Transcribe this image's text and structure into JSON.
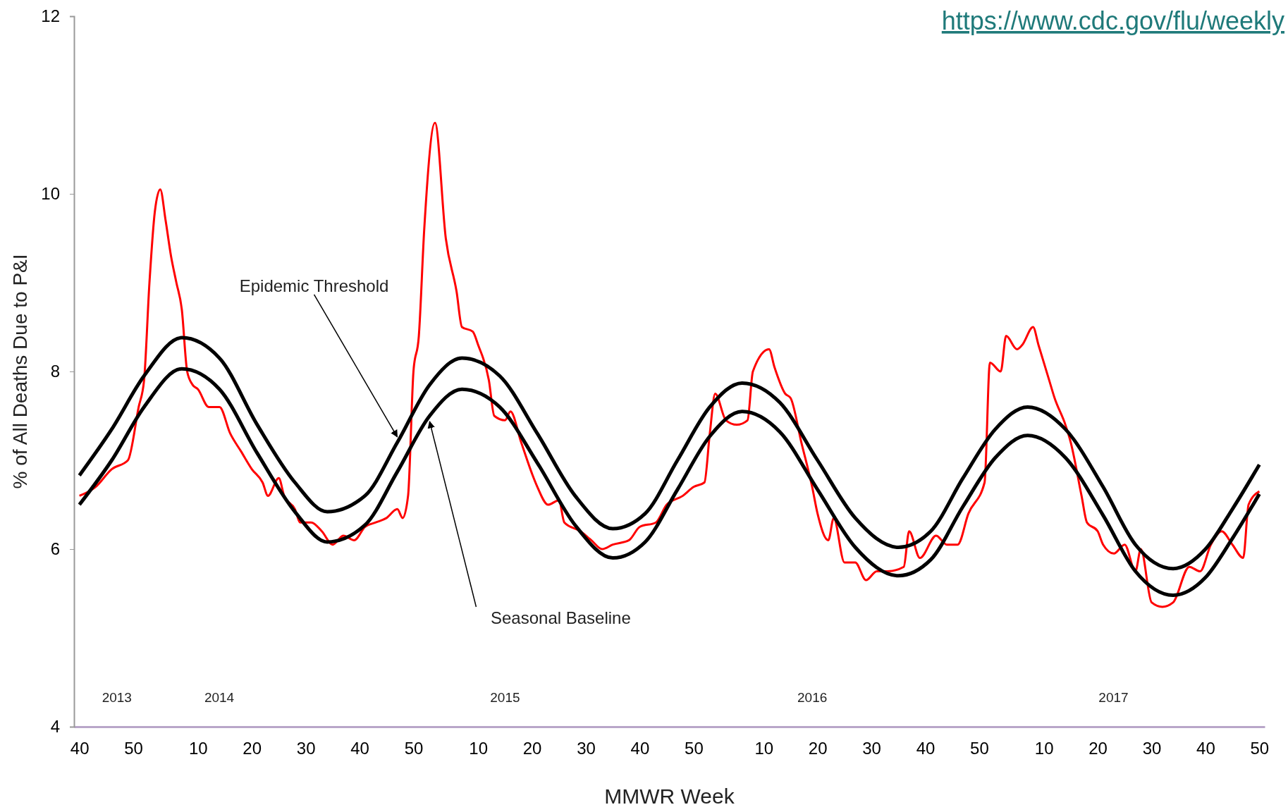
{
  "chart_data": {
    "type": "line",
    "xlabel": "MMWR Week",
    "ylabel": "% of All Deaths Due to P&I",
    "xlim": [
      "2013-09-28",
      "2017-12-23"
    ],
    "ylim": [
      4,
      12
    ],
    "yticks": [
      4,
      6,
      8,
      10,
      12
    ],
    "xticks": [
      {
        "value": "2013-10-05",
        "label": "40"
      },
      {
        "value": "2013-12-14",
        "label": "50"
      },
      {
        "value": "2014-03-08",
        "label": "10"
      },
      {
        "value": "2014-05-17",
        "label": "20"
      },
      {
        "value": "2014-07-26",
        "label": "30"
      },
      {
        "value": "2014-10-04",
        "label": "40"
      },
      {
        "value": "2014-12-13",
        "label": "50"
      },
      {
        "value": "2015-03-07",
        "label": "10"
      },
      {
        "value": "2015-05-16",
        "label": "20"
      },
      {
        "value": "2015-07-25",
        "label": "30"
      },
      {
        "value": "2015-10-03",
        "label": "40"
      },
      {
        "value": "2015-12-12",
        "label": "50"
      },
      {
        "value": "2016-03-12",
        "label": "10"
      },
      {
        "value": "2016-05-21",
        "label": "20"
      },
      {
        "value": "2016-07-30",
        "label": "30"
      },
      {
        "value": "2016-10-08",
        "label": "40"
      },
      {
        "value": "2016-12-17",
        "label": "50"
      },
      {
        "value": "2017-03-11",
        "label": "10"
      },
      {
        "value": "2017-05-20",
        "label": "20"
      },
      {
        "value": "2017-07-29",
        "label": "30"
      },
      {
        "value": "2017-10-07",
        "label": "40"
      },
      {
        "value": "2017-12-16",
        "label": "50"
      }
    ],
    "series": [
      {
        "color": "#ff0000",
        "x": [
          "2013-10-05",
          "2013-10-26",
          "2013-11-16",
          "2013-12-07",
          "2013-12-21",
          "2013-12-28",
          "2014-01-04",
          "2014-01-11",
          "2014-01-18",
          "2014-01-25",
          "2014-02-01",
          "2014-02-08",
          "2014-02-15",
          "2014-02-22",
          "2014-03-01",
          "2014-03-08",
          "2014-03-22",
          "2014-04-05",
          "2014-04-19",
          "2014-05-03",
          "2014-05-17",
          "2014-05-31",
          "2014-06-07",
          "2014-06-21",
          "2014-06-28",
          "2014-07-12",
          "2014-07-19",
          "2014-08-02",
          "2014-08-16",
          "2014-08-30",
          "2014-09-13",
          "2014-09-27",
          "2014-10-11",
          "2014-10-25",
          "2014-11-08",
          "2014-11-22",
          "2014-11-29",
          "2014-12-06",
          "2014-12-13",
          "2014-12-20",
          "2014-12-27",
          "2015-01-10",
          "2015-01-24",
          "2015-02-07",
          "2015-02-14",
          "2015-02-28",
          "2015-03-07",
          "2015-03-21",
          "2015-03-28",
          "2015-04-11",
          "2015-04-18",
          "2015-05-02",
          "2015-05-16",
          "2015-05-23",
          "2015-06-06",
          "2015-06-20",
          "2015-06-27",
          "2015-07-18",
          "2015-08-01",
          "2015-08-15",
          "2015-08-29",
          "2015-09-19",
          "2015-10-03",
          "2015-10-24",
          "2015-11-07",
          "2015-11-28",
          "2015-12-12",
          "2015-12-26",
          "2016-01-02",
          "2016-01-09",
          "2016-01-23",
          "2016-02-06",
          "2016-02-20",
          "2016-02-27",
          "2016-03-19",
          "2016-03-26",
          "2016-04-09",
          "2016-04-16",
          "2016-04-30",
          "2016-05-14",
          "2016-05-21",
          "2016-06-04",
          "2016-06-11",
          "2016-06-25",
          "2016-07-09",
          "2016-07-23",
          "2016-08-06",
          "2016-08-20",
          "2016-09-10",
          "2016-09-17",
          "2016-10-01",
          "2016-10-22",
          "2016-11-05",
          "2016-11-19",
          "2016-12-03",
          "2016-12-24",
          "2016-12-31",
          "2017-01-14",
          "2017-01-21",
          "2017-02-04",
          "2017-02-11",
          "2017-02-25",
          "2017-03-04",
          "2017-03-18",
          "2017-03-25",
          "2017-04-08",
          "2017-04-15",
          "2017-04-29",
          "2017-05-06",
          "2017-05-20",
          "2017-05-27",
          "2017-06-10",
          "2017-06-24",
          "2017-07-08",
          "2017-07-15",
          "2017-07-29",
          "2017-08-12",
          "2017-08-26",
          "2017-09-16",
          "2017-09-30",
          "2017-10-14",
          "2017-10-28",
          "2017-11-11",
          "2017-11-25",
          "2017-12-02",
          "2017-12-16"
        ],
        "values": [
          6.6,
          6.7,
          6.9,
          7.0,
          7.6,
          7.9,
          9.0,
          9.8,
          10.05,
          9.7,
          9.3,
          9.0,
          8.7,
          8.0,
          7.85,
          7.8,
          7.6,
          7.6,
          7.3,
          7.1,
          6.9,
          6.75,
          6.6,
          6.8,
          6.6,
          6.45,
          6.3,
          6.3,
          6.2,
          6.05,
          6.15,
          6.1,
          6.25,
          6.3,
          6.35,
          6.45,
          6.35,
          6.6,
          8.0,
          8.4,
          9.6,
          10.8,
          9.5,
          8.9,
          8.5,
          8.45,
          8.3,
          7.9,
          7.5,
          7.45,
          7.55,
          7.2,
          6.85,
          6.7,
          6.5,
          6.55,
          6.3,
          6.2,
          6.1,
          6.0,
          6.05,
          6.1,
          6.25,
          6.3,
          6.5,
          6.6,
          6.7,
          6.75,
          7.3,
          7.75,
          7.45,
          7.4,
          7.45,
          8.0,
          8.25,
          8.05,
          7.75,
          7.7,
          7.2,
          6.7,
          6.4,
          6.1,
          6.35,
          5.85,
          5.85,
          5.65,
          5.75,
          5.75,
          5.8,
          6.2,
          5.9,
          6.15,
          6.05,
          6.05,
          6.4,
          6.75,
          8.1,
          8.0,
          8.4,
          8.25,
          8.3,
          8.5,
          8.3,
          7.9,
          7.7,
          7.4,
          7.2,
          6.6,
          6.3,
          6.2,
          6.05,
          5.95,
          6.05,
          5.75,
          6.0,
          5.4,
          5.35,
          5.4,
          5.8,
          5.75,
          6.05,
          6.2,
          6.05,
          5.9,
          6.5,
          6.65
        ]
      },
      {
        "name": "Epidemic Threshold",
        "color": "#000000",
        "x": [
          "2013-10-05",
          "2013-11-16",
          "2013-12-28",
          "2014-02-15",
          "2014-04-05",
          "2014-05-24",
          "2014-07-12",
          "2014-08-23",
          "2014-10-11",
          "2014-11-22",
          "2015-01-03",
          "2015-02-14",
          "2015-04-04",
          "2015-05-23",
          "2015-07-11",
          "2015-08-29",
          "2015-10-10",
          "2015-11-21",
          "2016-01-02",
          "2016-02-13",
          "2016-04-02",
          "2016-05-21",
          "2016-07-09",
          "2016-09-03",
          "2016-10-15",
          "2016-11-26",
          "2017-01-07",
          "2017-02-18",
          "2017-04-08",
          "2017-05-27",
          "2017-07-08",
          "2017-08-26",
          "2017-10-07",
          "2017-11-11",
          "2017-12-16"
        ],
        "values": [
          6.83,
          7.35,
          7.95,
          8.38,
          8.15,
          7.4,
          6.75,
          6.42,
          6.6,
          7.2,
          7.85,
          8.15,
          7.95,
          7.3,
          6.6,
          6.23,
          6.4,
          7.0,
          7.6,
          7.87,
          7.65,
          7.0,
          6.35,
          6.02,
          6.2,
          6.8,
          7.35,
          7.6,
          7.35,
          6.7,
          6.05,
          5.78,
          6.0,
          6.45,
          6.95
        ]
      },
      {
        "name": "Seasonal Baseline",
        "color": "#000000",
        "x": [
          "2013-10-05",
          "2013-11-16",
          "2013-12-28",
          "2014-02-15",
          "2014-04-05",
          "2014-05-24",
          "2014-07-12",
          "2014-08-23",
          "2014-10-11",
          "2014-11-22",
          "2015-01-03",
          "2015-02-14",
          "2015-04-04",
          "2015-05-23",
          "2015-07-11",
          "2015-08-29",
          "2015-10-10",
          "2015-11-21",
          "2016-01-02",
          "2016-02-13",
          "2016-04-02",
          "2016-05-21",
          "2016-07-09",
          "2016-09-03",
          "2016-10-15",
          "2016-11-26",
          "2017-01-07",
          "2017-02-18",
          "2017-04-08",
          "2017-05-27",
          "2017-07-08",
          "2017-08-26",
          "2017-10-07",
          "2017-11-11",
          "2017-12-16"
        ],
        "values": [
          6.5,
          7.0,
          7.6,
          8.03,
          7.8,
          7.08,
          6.42,
          6.08,
          6.27,
          6.87,
          7.5,
          7.8,
          7.6,
          6.97,
          6.27,
          5.9,
          6.08,
          6.67,
          7.27,
          7.55,
          7.32,
          6.67,
          6.02,
          5.7,
          5.88,
          6.48,
          7.03,
          7.28,
          7.03,
          6.38,
          5.75,
          5.48,
          5.68,
          6.12,
          6.62
        ]
      }
    ],
    "annotations": [
      "https://www.cdc.gov/flu/weekly",
      "2013",
      "2014",
      "2015",
      "2016",
      "2017"
    ]
  }
}
